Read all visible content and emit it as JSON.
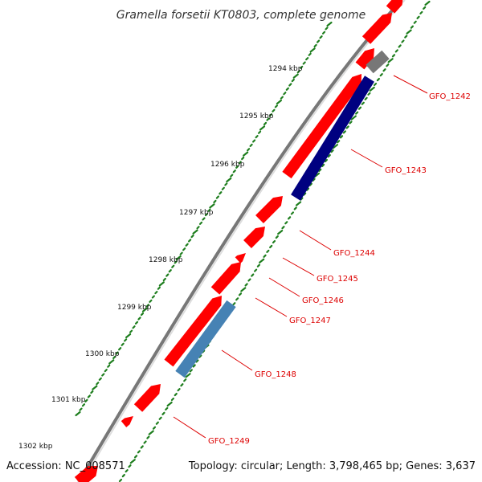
{
  "title": "Gramella forsetii KT0803, complete genome",
  "footer": {
    "accession": "Accession: NC_008571",
    "summary": "Topology: circular; Length: 3,798,465 bp; Genes: 3,637"
  },
  "colors": {
    "backbone": "#888888",
    "forward_cds": "#ff0000",
    "reverse_cds": "#000080",
    "reverse_cds_light": "#4682b4",
    "gray_feature": "#777777",
    "tick_dots": "#1e7e1e",
    "label_red": "#dd0000"
  },
  "ticks": [
    {
      "label": "1294 kbp"
    },
    {
      "label": "1295 kbp"
    },
    {
      "label": "1296 kbp"
    },
    {
      "label": "1297 kbp"
    },
    {
      "label": "1298 kbp"
    },
    {
      "label": "1299 kbp"
    },
    {
      "label": "1300 kbp"
    },
    {
      "label": "1301 kbp"
    },
    {
      "label": "1302 kbp"
    }
  ],
  "gene_labels": [
    {
      "label": "GFO_1242"
    },
    {
      "label": "GFO_1243"
    },
    {
      "label": "GFO_1244"
    },
    {
      "label": "GFO_1245"
    },
    {
      "label": "GFO_1246"
    },
    {
      "label": "GFO_1247"
    },
    {
      "label": "GFO_1248"
    },
    {
      "label": "GFO_1249"
    }
  ]
}
